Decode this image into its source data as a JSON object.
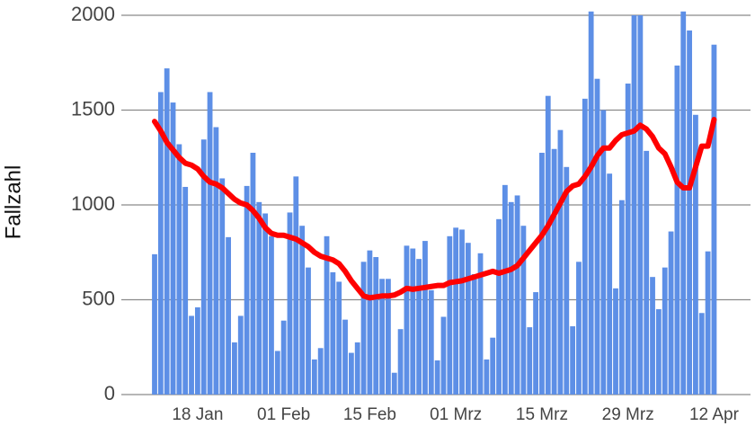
{
  "chart_data": {
    "type": "bar",
    "y_label": "Fallzahl",
    "categories": [
      null,
      null,
      null,
      null,
      null,
      null,
      null,
      "18 Jan",
      null,
      null,
      null,
      null,
      null,
      null,
      null,
      null,
      null,
      null,
      null,
      null,
      null,
      "01 Feb",
      null,
      null,
      null,
      null,
      null,
      null,
      null,
      null,
      null,
      null,
      null,
      null,
      null,
      "15 Feb",
      null,
      null,
      null,
      null,
      null,
      null,
      null,
      null,
      null,
      null,
      null,
      null,
      null,
      "01 Mrz",
      null,
      null,
      null,
      null,
      null,
      null,
      null,
      null,
      null,
      null,
      null,
      null,
      null,
      "15 Mrz",
      null,
      null,
      null,
      null,
      null,
      null,
      null,
      null,
      null,
      null,
      null,
      null,
      null,
      "29 Mrz",
      null,
      null,
      null,
      null,
      null,
      null,
      null,
      null,
      null,
      null,
      null,
      null,
      null,
      "12 Apr"
    ],
    "series": [
      {
        "color": "#5d8fe6",
        "values": [
          740,
          1595,
          1720,
          1540,
          1320,
          1095,
          415,
          460,
          1345,
          1595,
          1410,
          1140,
          830,
          275,
          415,
          1100,
          1275,
          1015,
          955,
          835,
          230,
          390,
          960,
          1150,
          890,
          670,
          185,
          245,
          835,
          645,
          595,
          395,
          220,
          275,
          700,
          760,
          725,
          610,
          610,
          115,
          345,
          785,
          770,
          715,
          810,
          550,
          180,
          410,
          835,
          880,
          870,
          800,
          635,
          745,
          185,
          300,
          925,
          1105,
          1015,
          1050,
          890,
          355,
          540,
          1275,
          1575,
          1295,
          1395,
          1200,
          360,
          700,
          1560,
          2020,
          1665,
          1500,
          1165,
          560,
          1025,
          1640,
          2000,
          2000,
          1285,
          620,
          450,
          670,
          860,
          1735,
          2020,
          1920,
          1475,
          430,
          755,
          1845
        ]
      },
      {
        "color": "#ff0000",
        "type": "line",
        "values": [
          1440,
          1390,
          1330,
          1290,
          1250,
          1220,
          1210,
          1190,
          1150,
          1120,
          1110,
          1090,
          1060,
          1030,
          1010,
          1000,
          970,
          930,
          880,
          850,
          840,
          840,
          830,
          820,
          800,
          780,
          750,
          730,
          720,
          710,
          690,
          650,
          600,
          560,
          520,
          510,
          515,
          520,
          520,
          525,
          540,
          560,
          555,
          560,
          565,
          570,
          575,
          575,
          590,
          595,
          600,
          610,
          620,
          630,
          640,
          650,
          640,
          650,
          660,
          680,
          720,
          760,
          800,
          840,
          890,
          950,
          1010,
          1070,
          1100,
          1110,
          1150,
          1200,
          1260,
          1300,
          1300,
          1340,
          1370,
          1380,
          1390,
          1420,
          1400,
          1360,
          1300,
          1270,
          1200,
          1120,
          1090,
          1090,
          1200,
          1310,
          1310,
          1450
        ]
      }
    ],
    "ylim": [
      0,
      2000
    ],
    "yticks": [
      0,
      500,
      1000,
      1500,
      2000
    ],
    "grid": true
  }
}
